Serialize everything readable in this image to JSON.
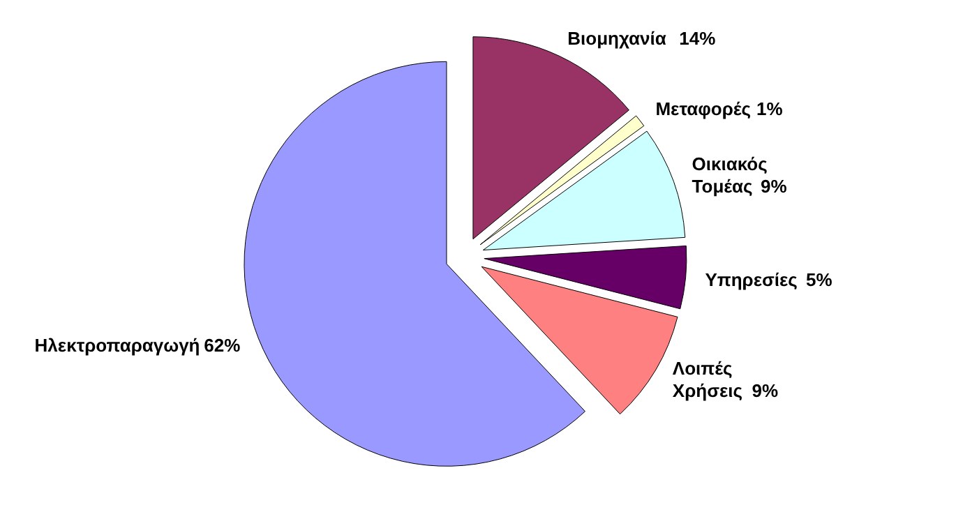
{
  "chart_data": {
    "type": "pie",
    "categories": [
      "Βιομηχανία",
      "Μεταφορές",
      "Οικιακός Τομέας",
      "Υπηρεσίες",
      "Λοιπές Χρήσεις",
      "Ηλεκτροπαραγωγή"
    ],
    "values": [
      14,
      1,
      9,
      5,
      9,
      62
    ],
    "value_labels": [
      "14%",
      "1%",
      "9%",
      "5%",
      "9%",
      "62%"
    ],
    "colors": [
      "#993366",
      "#ffffcc",
      "#ccffff",
      "#660066",
      "#ff8080",
      "#9999ff"
    ]
  }
}
